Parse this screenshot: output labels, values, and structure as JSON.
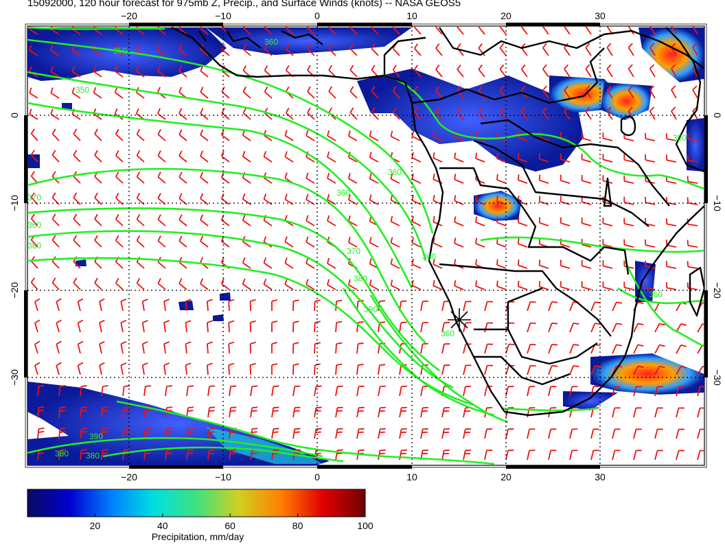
{
  "title": "15092000, 120 hour forecast for 975mb Z, Precip., and Surface Winds (knots) -- NASA GEOS5",
  "map": {
    "lon_ticks": [
      "-20",
      "-10",
      "0",
      "10",
      "20",
      "30"
    ],
    "lat_ticks": [
      "0",
      "-10",
      "-20",
      "-30"
    ],
    "contour_labels": [
      "350",
      "360",
      "370",
      "380",
      "390"
    ],
    "colors": {
      "contour": "#22ee22",
      "wind_barb": "#ee1111",
      "coastline": "#000000",
      "grid": "#000000"
    },
    "marker_icon": "asterisk-location-marker"
  },
  "colorbar": {
    "title": "Precipitation, mm/day",
    "ticks": [
      "20",
      "40",
      "60",
      "80",
      "100"
    ],
    "stops": [
      "#0a0a60",
      "#0000d0",
      "#0080ff",
      "#00e0e0",
      "#40e080",
      "#d0d020",
      "#ff8000",
      "#e00000",
      "#700000"
    ]
  }
}
